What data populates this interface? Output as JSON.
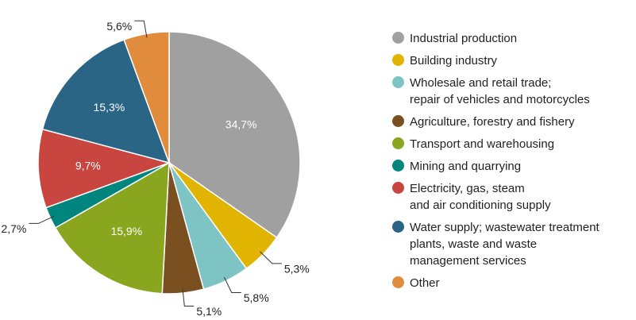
{
  "chart_data": {
    "type": "pie",
    "categories": [
      "Industrial production",
      "Building industry",
      "Wholesale and retail trade;\nrepair of vehicles and motorcycles",
      "Agriculture, forestry and fishery",
      "Transport and warehousing",
      "Mining and quarrying",
      "Electricity, gas, steam\nand air conditioning supply",
      "Water supply; wastewater treatment\nplants, waste and waste\nmanagement services",
      "Other"
    ],
    "values": [
      34.7,
      5.3,
      5.8,
      5.1,
      15.9,
      2.7,
      9.7,
      15.3,
      5.6
    ],
    "value_labels": [
      "34,7%",
      "5,3%",
      "5,8%",
      "5,1%",
      "15,9%",
      "2,7%",
      "9,7%",
      "15,3%",
      "5,6%"
    ],
    "colors": [
      "#a0a0a0",
      "#e0b400",
      "#7fc4c4",
      "#7a5020",
      "#8aa51e",
      "#00857f",
      "#c8463f",
      "#2a6585",
      "#e08c3c"
    ]
  }
}
